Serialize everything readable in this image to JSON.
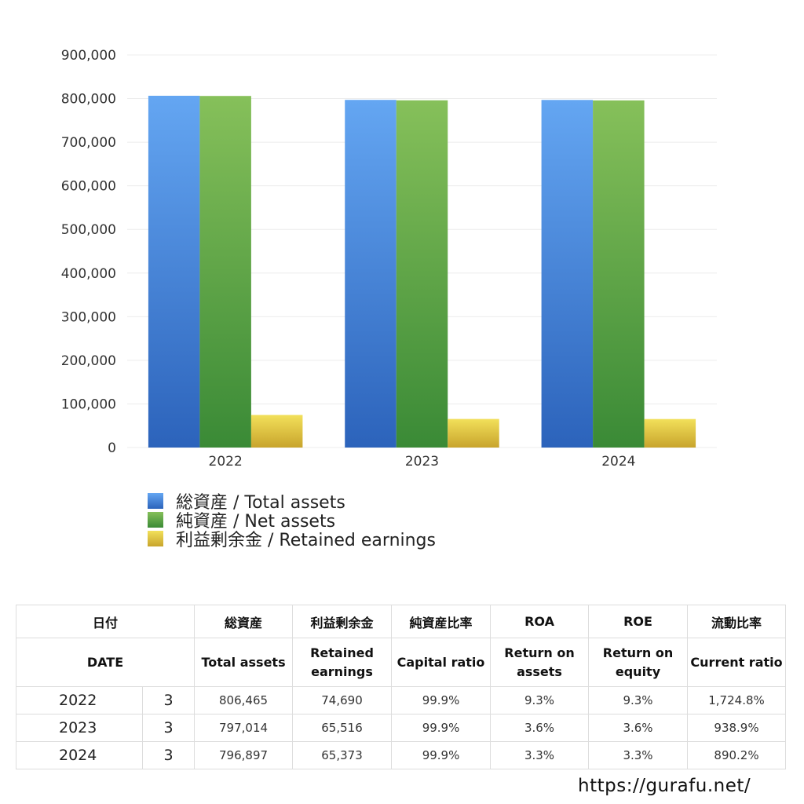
{
  "chart_data": {
    "type": "bar",
    "categories": [
      "2022",
      "2023",
      "2024"
    ],
    "series": [
      {
        "name": "総資産 / Total assets",
        "values": [
          806465,
          797014,
          796897
        ]
      },
      {
        "name": "純資産 / Net assets",
        "values": [
          806000,
          796000,
          795800
        ]
      },
      {
        "name": "利益剰余金 / Retained earnings",
        "values": [
          74690,
          65516,
          65373
        ]
      }
    ],
    "ylim": [
      0,
      900000
    ],
    "yticks": [
      "0",
      "100,000",
      "200,000",
      "300,000",
      "400,000",
      "500,000",
      "600,000",
      "700,000",
      "800,000",
      "900,000"
    ],
    "grid": true,
    "legend_position": "bottom-left",
    "colors": {
      "total_assets": [
        "#64a6f2",
        "#2c63bb"
      ],
      "net_assets": [
        "#86c05a",
        "#3a8a36"
      ],
      "retained_earnings": [
        "#f2e05a",
        "#c8a42c"
      ]
    }
  },
  "table": {
    "headers_jp": [
      "日付",
      "総資産",
      "利益剰余金",
      "純資産比率",
      "ROA",
      "ROE",
      "流動比率"
    ],
    "headers_en": [
      "DATE",
      "Total assets",
      "Retained earnings",
      "Capital ratio",
      "Return on assets",
      "Return on equity",
      "Current ratio"
    ],
    "rows": [
      {
        "year": "2022",
        "month": "3",
        "total_assets": "806,465",
        "retained_earnings": "74,690",
        "capital_ratio": "99.9%",
        "roa": "9.3%",
        "roe": "9.3%",
        "current_ratio": "1,724.8%"
      },
      {
        "year": "2023",
        "month": "3",
        "total_assets": "797,014",
        "retained_earnings": "65,516",
        "capital_ratio": "99.9%",
        "roa": "3.6%",
        "roe": "3.6%",
        "current_ratio": "938.9%"
      },
      {
        "year": "2024",
        "month": "3",
        "total_assets": "796,897",
        "retained_earnings": "65,373",
        "capital_ratio": "99.9%",
        "roa": "3.3%",
        "roe": "3.3%",
        "current_ratio": "890.2%"
      }
    ]
  },
  "footer": {
    "url": "https://gurafu.net/"
  }
}
